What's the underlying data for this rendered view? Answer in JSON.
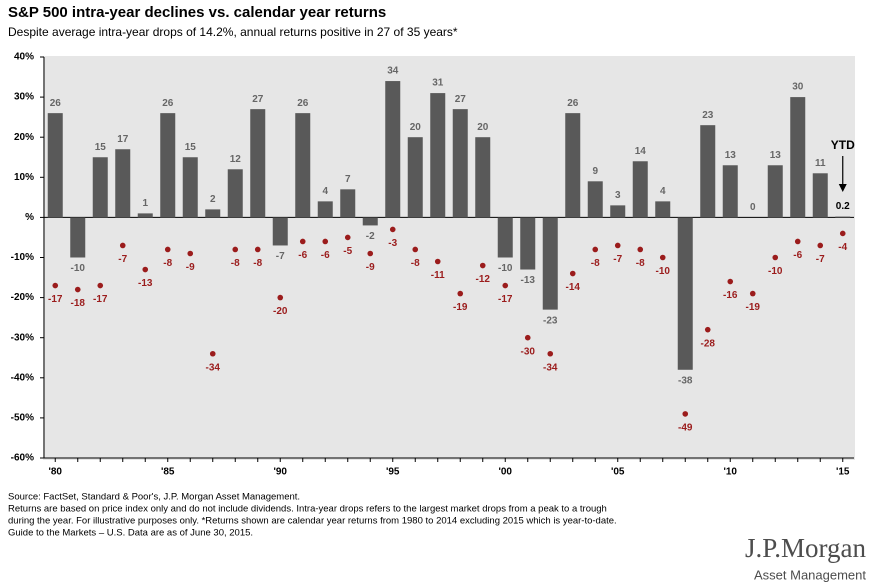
{
  "chart_data": {
    "type": "bar",
    "title": "S&P 500 intra-year declines vs. calendar year returns",
    "subtitle": "Despite average intra-year drops of 14.2%, annual returns positive in 27 of 35 years*",
    "categories": [
      "'80",
      null,
      null,
      null,
      null,
      "'85",
      null,
      null,
      null,
      null,
      "'90",
      null,
      null,
      null,
      null,
      "'95",
      null,
      null,
      null,
      null,
      "'00",
      null,
      null,
      null,
      null,
      "'05",
      null,
      null,
      null,
      null,
      "'10",
      null,
      null,
      null,
      null,
      "'15"
    ],
    "series": [
      {
        "type": "bar",
        "color": "#595959",
        "values": [
          26,
          -10,
          15,
          17,
          1,
          26,
          15,
          2,
          12,
          27,
          -7,
          26,
          4,
          7,
          -2,
          34,
          20,
          31,
          27,
          20,
          -10,
          -13,
          -23,
          26,
          9,
          3,
          14,
          4,
          -38,
          23,
          13,
          0,
          13,
          30,
          11,
          0.2
        ]
      },
      {
        "type": "dot",
        "color": "#9b1c1c",
        "values": [
          -17,
          -18,
          -17,
          -7,
          -13,
          -8,
          -9,
          -34,
          -8,
          -8,
          -20,
          -6,
          -6,
          -5,
          -9,
          -3,
          -8,
          -11,
          -19,
          -12,
          -17,
          -30,
          -34,
          -14,
          -8,
          -7,
          -8,
          -10,
          -49,
          -28,
          -16,
          -19,
          -10,
          -6,
          -7,
          -4
        ]
      }
    ],
    "ylim": [
      -60,
      40
    ],
    "yticks": [
      {
        "value": -60,
        "label": "-60%"
      },
      {
        "value": -50,
        "label": "-50%"
      },
      {
        "value": -40,
        "label": "-40%"
      },
      {
        "value": -30,
        "label": "-30%"
      },
      {
        "value": -20,
        "label": "-20%"
      },
      {
        "value": -10,
        "label": "-10%"
      },
      {
        "value": 0,
        "label": "%"
      },
      {
        "value": 10,
        "label": "10%"
      },
      {
        "value": 20,
        "label": "20%"
      },
      {
        "value": 30,
        "label": "30%"
      },
      {
        "value": 40,
        "label": "40%"
      }
    ],
    "annotations": [
      "YTD"
    ],
    "grid": false
  },
  "footer": [
    "Source: FactSet, Standard & Poor's, J.P. Morgan Asset Management.",
    "Returns are based on price index only and do not include dividends. Intra-year drops refers to the largest market drops from a peak to a trough",
    "during the year. For illustrative purposes only.  *Returns shown are calendar year returns from 1980 to 2014 excluding 2015 which is year-to-date.",
    "Guide to the Markets – U.S. Data are as of June 30, 2015."
  ],
  "logo": {
    "name": "J.P.Morgan",
    "tagline": "Asset Management"
  }
}
